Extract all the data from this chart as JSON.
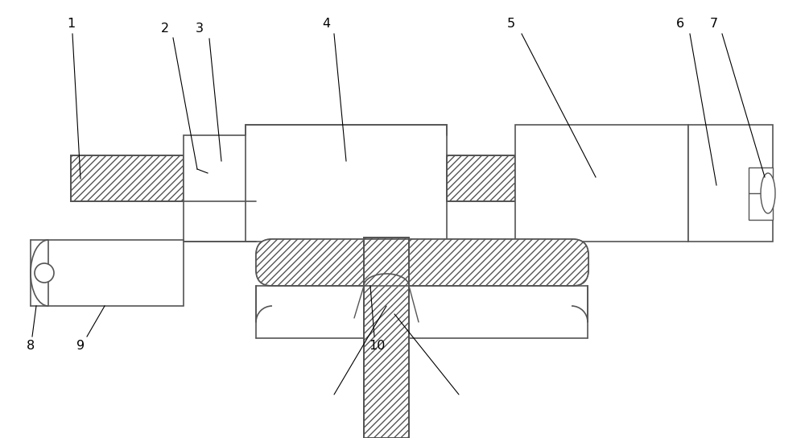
{
  "bg_color": "#ffffff",
  "line_color": "#555555",
  "lw": 1.2,
  "fig_width": 10.0,
  "fig_height": 5.44
}
